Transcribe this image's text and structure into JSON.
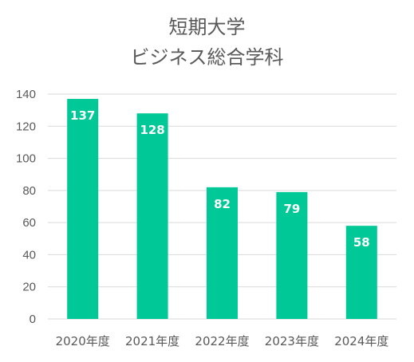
{
  "chart_data": {
    "type": "bar",
    "title": [
      "短期大学",
      "ビジネス総合学科"
    ],
    "categories": [
      "2020年度",
      "2021年度",
      "2022年度",
      "2023年度",
      "2024年度"
    ],
    "values": [
      137,
      128,
      82,
      79,
      58
    ],
    "value_labels": [
      "137",
      "128",
      "82",
      "79",
      "58"
    ],
    "ylim": [
      0,
      140
    ],
    "yticks": [
      "0",
      "20",
      "40",
      "60",
      "80",
      "100",
      "120",
      "140"
    ],
    "grid": true,
    "legend": "none",
    "colors": {
      "bar": "#00c896",
      "grid": "#d9d9d9",
      "text": "#595959",
      "data_label": "#ffffff"
    }
  }
}
